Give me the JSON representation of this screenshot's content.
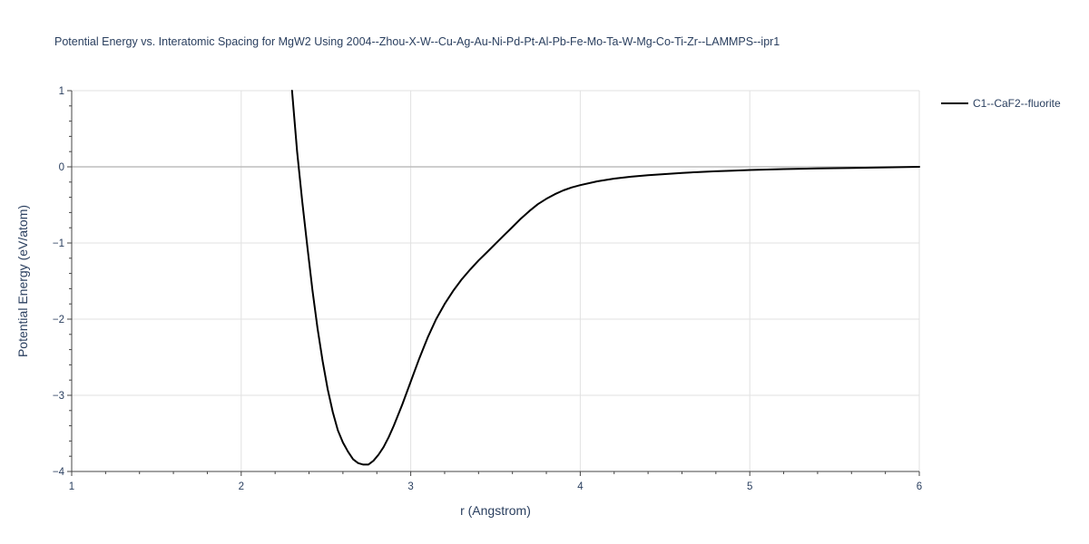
{
  "chart_data": {
    "type": "line",
    "title": "Potential Energy vs. Interatomic Spacing for MgW2 Using 2004--Zhou-X-W--Cu-Ag-Au-Ni-Pd-Pt-Al-Pb-Fe-Mo-Ta-W-Mg-Co-Ti-Zr--LAMMPS--ipr1",
    "xlabel": "r (Angstrom)",
    "ylabel": "Potential Energy (eV/atom)",
    "xlim": [
      1,
      6
    ],
    "ylim": [
      -4,
      1
    ],
    "x_ticks": [
      1,
      2,
      3,
      4,
      5,
      6
    ],
    "y_ticks": [
      1,
      0,
      -1,
      -2,
      -3,
      -4
    ],
    "y_tick_labels": [
      "1",
      "0",
      "−1",
      "−2",
      "−3",
      "−4"
    ],
    "grid": true,
    "legend_position": "top-right",
    "series": [
      {
        "name": "C1--CaF2--fluorite",
        "color": "#000000",
        "x": [
          2.3,
          2.33,
          2.36,
          2.39,
          2.42,
          2.45,
          2.48,
          2.51,
          2.54,
          2.57,
          2.6,
          2.63,
          2.66,
          2.69,
          2.72,
          2.75,
          2.78,
          2.81,
          2.84,
          2.87,
          2.9,
          2.95,
          3.0,
          3.05,
          3.1,
          3.15,
          3.2,
          3.25,
          3.3,
          3.35,
          3.4,
          3.45,
          3.5,
          3.55,
          3.6,
          3.65,
          3.7,
          3.75,
          3.8,
          3.85,
          3.9,
          3.95,
          4.0,
          4.1,
          4.2,
          4.3,
          4.4,
          4.5,
          4.6,
          4.7,
          4.8,
          4.9,
          5.0,
          5.2,
          5.4,
          5.6,
          5.8,
          6.0
        ],
        "y": [
          1.0,
          0.2,
          -0.45,
          -1.05,
          -1.62,
          -2.12,
          -2.55,
          -2.92,
          -3.22,
          -3.46,
          -3.62,
          -3.74,
          -3.84,
          -3.89,
          -3.91,
          -3.91,
          -3.86,
          -3.78,
          -3.68,
          -3.55,
          -3.4,
          -3.12,
          -2.82,
          -2.52,
          -2.24,
          -2.0,
          -1.8,
          -1.63,
          -1.48,
          -1.35,
          -1.23,
          -1.12,
          -1.01,
          -0.9,
          -0.79,
          -0.68,
          -0.58,
          -0.49,
          -0.42,
          -0.36,
          -0.31,
          -0.27,
          -0.24,
          -0.19,
          -0.155,
          -0.13,
          -0.11,
          -0.095,
          -0.08,
          -0.068,
          -0.058,
          -0.05,
          -0.042,
          -0.03,
          -0.021,
          -0.014,
          -0.007,
          0.0
        ]
      }
    ]
  }
}
